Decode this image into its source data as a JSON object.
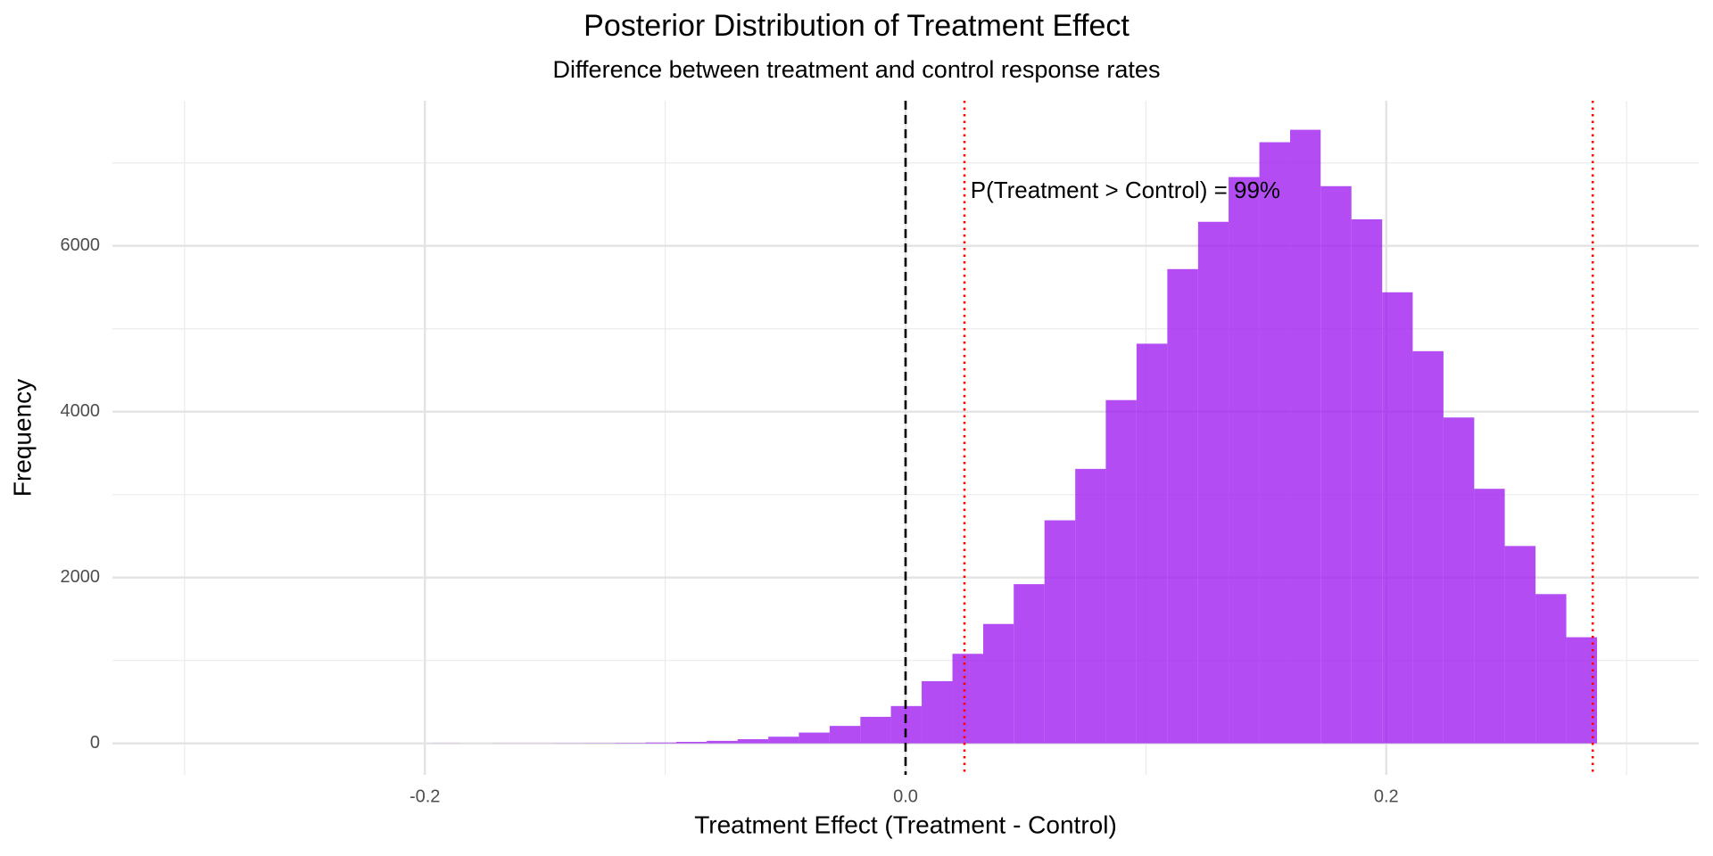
{
  "chart_data": {
    "type": "histogram",
    "title": "Posterior Distribution of Treatment Effect",
    "subtitle": "Difference between treatment and control response rates",
    "x_label": "Treatment Effect (Treatment - Control)",
    "y_label": "Frequency",
    "bins": [
      -0.1976,
      -0.1848,
      -0.1721,
      -0.1593,
      -0.1465,
      -0.1338,
      -0.121,
      -0.1082,
      -0.0954,
      -0.0827,
      -0.0699,
      -0.0571,
      -0.0444,
      -0.0316,
      -0.0188,
      -0.0061,
      0.0067,
      0.0195,
      0.0323,
      0.045,
      0.0578,
      0.0706,
      0.0833,
      0.0961,
      0.1089,
      0.1217,
      0.1344,
      0.1472,
      0.16,
      0.1727,
      0.1855,
      0.1983,
      0.211,
      0.2238,
      0.2366,
      0.2493,
      0.2621,
      0.2749,
      0.2877
    ],
    "values": [
      1,
      0,
      1,
      1,
      2,
      3,
      5,
      10,
      18,
      30,
      50,
      80,
      130,
      210,
      320,
      450,
      750,
      1080,
      1440,
      1920,
      2690,
      3310,
      4140,
      4820,
      5720,
      6290,
      6830,
      7250,
      7400,
      6720,
      6320,
      5440,
      4730,
      3930,
      3070,
      2380,
      1800,
      1280
    ],
    "color": "#a020f0",
    "alpha": 0.8,
    "xlim": [
      -0.33,
      0.33
    ],
    "ylim": [
      -380,
      7750
    ],
    "xticks": [
      -0.2,
      {
        "value": 0,
        "label": "0.0"
      },
      0.2
    ],
    "yticks": [
      0,
      2000,
      4000,
      6000
    ],
    "minor_xticks": [
      -0.3,
      -0.1,
      0.1,
      0.3
    ],
    "minor_yticks": [
      1000,
      3000,
      5000,
      7000
    ],
    "grid": true,
    "vlines": [
      {
        "x": 0,
        "color": "#000000",
        "style": "dashed"
      },
      {
        "x": 0.0245,
        "color": "#ff0000",
        "style": "dotted"
      },
      {
        "x": 0.2859,
        "color": "#ff0000",
        "style": "dotted"
      }
    ],
    "annotation": {
      "text": "P(Treatment > Control) = 99%",
      "x": 0.027,
      "y": 6650,
      "color": "#0000ff"
    }
  }
}
